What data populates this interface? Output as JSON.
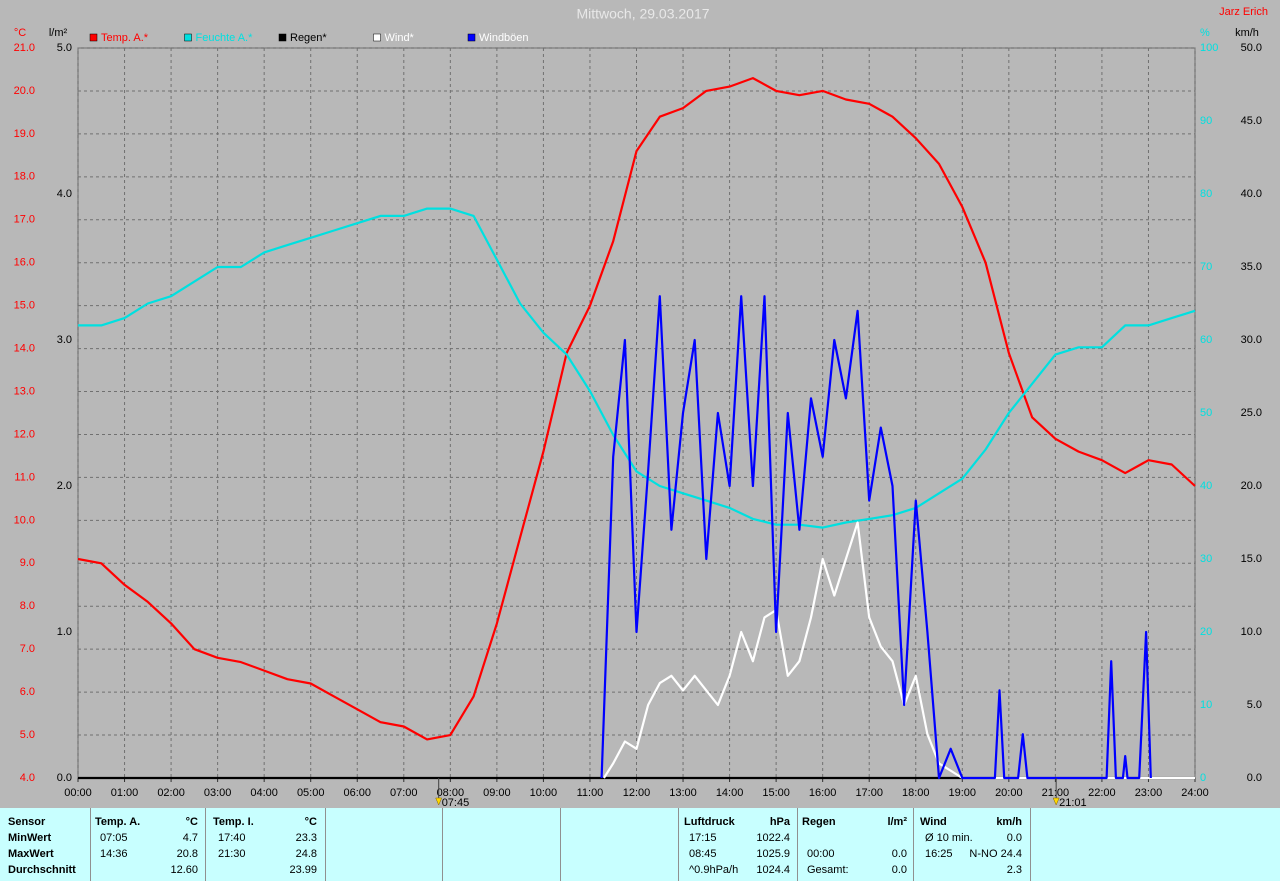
{
  "chart_data": {
    "type": "line",
    "title": "Mittwoch, 29.03.2017",
    "author": "Jarz Erich",
    "x": [
      0,
      0.5,
      1,
      1.5,
      2,
      2.5,
      3,
      3.5,
      4,
      4.5,
      5,
      5.5,
      6,
      6.5,
      7,
      7.5,
      8,
      8.5,
      9,
      9.5,
      10,
      10.5,
      11,
      11.5,
      12,
      12.5,
      13,
      13.5,
      14,
      14.5,
      15,
      15.5,
      16,
      16.5,
      17,
      17.5,
      18,
      18.5,
      19,
      19.5,
      20,
      20.5,
      21,
      21.5,
      22,
      22.5,
      23,
      23.5,
      24
    ],
    "xlim": [
      0,
      24
    ],
    "xticks": [
      {
        "value": 0,
        "label": "00:00"
      },
      {
        "value": 1,
        "label": "01:00"
      },
      {
        "value": 2,
        "label": "02:00"
      },
      {
        "value": 3,
        "label": "03:00"
      },
      {
        "value": 4,
        "label": "04:00"
      },
      {
        "value": 5,
        "label": "05:00"
      },
      {
        "value": 6,
        "label": "06:00"
      },
      {
        "value": 7,
        "label": "07:00"
      },
      {
        "value": 8,
        "label": "08:00"
      },
      {
        "value": 9,
        "label": "09:00"
      },
      {
        "value": 10,
        "label": "10:00"
      },
      {
        "value": 11,
        "label": "11:00"
      },
      {
        "value": 12,
        "label": "12:00"
      },
      {
        "value": 13,
        "label": "13:00"
      },
      {
        "value": 14,
        "label": "14:00"
      },
      {
        "value": 15,
        "label": "15:00"
      },
      {
        "value": 16,
        "label": "16:00"
      },
      {
        "value": 17,
        "label": "17:00"
      },
      {
        "value": 18,
        "label": "18:00"
      },
      {
        "value": 19,
        "label": "19:00"
      },
      {
        "value": 20,
        "label": "20:00"
      },
      {
        "value": 21,
        "label": "21:00"
      },
      {
        "value": 22,
        "label": "22:00"
      },
      {
        "value": 23,
        "label": "23:00"
      },
      {
        "value": 24,
        "label": "24:00"
      }
    ],
    "grid": true,
    "axes": [
      {
        "name": "°C",
        "color": "#ff0000",
        "lim": [
          4,
          21
        ],
        "ticks": [
          {
            "value": 4,
            "label": "4.0"
          },
          {
            "value": 5,
            "label": "5.0"
          },
          {
            "value": 6,
            "label": "6.0"
          },
          {
            "value": 7,
            "label": "7.0"
          },
          {
            "value": 8,
            "label": "8.0"
          },
          {
            "value": 9,
            "label": "9.0"
          },
          {
            "value": 10,
            "label": "10.0"
          },
          {
            "value": 11,
            "label": "11.0"
          },
          {
            "value": 12,
            "label": "12.0"
          },
          {
            "value": 13,
            "label": "13.0"
          },
          {
            "value": 14,
            "label": "14.0"
          },
          {
            "value": 15,
            "label": "15.0"
          },
          {
            "value": 16,
            "label": "16.0"
          },
          {
            "value": 17,
            "label": "17.0"
          },
          {
            "value": 18,
            "label": "18.0"
          },
          {
            "value": 19,
            "label": "19.0"
          },
          {
            "value": 20,
            "label": "20.0"
          },
          {
            "value": 21,
            "label": "21.0"
          }
        ]
      },
      {
        "name": "l/m²",
        "color": "#000000",
        "lim": [
          0,
          5
        ],
        "ticks": [
          {
            "value": 0,
            "label": "0.0"
          },
          {
            "value": 1,
            "label": "1.0"
          },
          {
            "value": 2,
            "label": "2.0"
          },
          {
            "value": 3,
            "label": "3.0"
          },
          {
            "value": 4,
            "label": "4.0"
          },
          {
            "value": 5,
            "label": "5.0"
          }
        ]
      },
      {
        "name": "%",
        "color": "#00e0e0",
        "lim": [
          0,
          100
        ],
        "ticks": [
          0,
          10,
          20,
          30,
          40,
          50,
          60,
          70,
          80,
          90,
          100
        ]
      },
      {
        "name": "km/h",
        "color": "#000000",
        "lim": [
          0,
          50
        ],
        "ticks": [
          {
            "value": 0,
            "label": "0.0"
          },
          {
            "value": 5,
            "label": "5.0"
          },
          {
            "value": 10,
            "label": "10.0"
          },
          {
            "value": 15,
            "label": "15.0"
          },
          {
            "value": 20,
            "label": "20.0"
          },
          {
            "value": 25,
            "label": "25.0"
          },
          {
            "value": 30,
            "label": "30.0"
          },
          {
            "value": 35,
            "label": "35.0"
          },
          {
            "value": 40,
            "label": "40.0"
          },
          {
            "value": 45,
            "label": "45.0"
          },
          {
            "value": 50,
            "label": "50.0"
          }
        ]
      }
    ],
    "series": [
      {
        "name": "Temp. A.*",
        "color": "#ff0000",
        "axis": 0,
        "values": [
          9.1,
          9.0,
          8.5,
          8.1,
          7.6,
          7.0,
          6.8,
          6.7,
          6.5,
          6.3,
          6.2,
          5.9,
          5.6,
          5.3,
          5.2,
          4.9,
          5.0,
          5.9,
          7.6,
          9.6,
          11.6,
          13.9,
          15.0,
          16.5,
          18.6,
          19.4,
          19.6,
          20.0,
          20.1,
          20.3,
          20.0,
          19.9,
          20.0,
          19.8,
          19.7,
          19.4,
          18.9,
          18.3,
          17.3,
          16.0,
          13.9,
          12.4,
          11.9,
          11.6,
          11.4,
          11.1,
          11.4,
          11.3,
          10.8
        ]
      },
      {
        "name": "Feuchte A.*",
        "color": "#00e0e0",
        "axis": 2,
        "values": [
          62,
          62,
          63,
          65,
          66,
          68,
          70,
          70,
          72,
          73,
          74,
          75,
          76,
          77,
          77,
          78,
          78,
          77,
          71,
          65,
          61,
          58,
          53,
          47,
          42,
          40,
          39,
          38,
          37,
          35.5,
          34.7,
          34.7,
          34.3,
          35,
          35.5,
          36,
          37,
          39,
          41,
          45,
          50,
          54,
          58,
          59,
          59,
          62,
          62,
          63,
          64
        ]
      },
      {
        "name": "Regen*",
        "color": "#000000",
        "axis": 1,
        "x": [
          0,
          24
        ],
        "values": [
          0,
          0
        ]
      },
      {
        "name": "Wind*",
        "color": "#ffffff",
        "axis": 3,
        "x": [
          11.3,
          11.5,
          11.75,
          12,
          12.25,
          12.5,
          12.75,
          13,
          13.25,
          13.5,
          13.75,
          14,
          14.25,
          14.5,
          14.75,
          15,
          15.25,
          15.5,
          15.75,
          16,
          16.25,
          16.5,
          16.75,
          17,
          17.25,
          17.5,
          17.75,
          18,
          18.25,
          18.5,
          18.75,
          19,
          24
        ],
        "values": [
          0,
          1,
          2.5,
          2,
          5,
          6.5,
          7,
          6,
          7,
          6,
          5,
          7,
          10,
          8,
          11,
          11.5,
          7,
          8,
          11,
          15,
          12.5,
          15,
          17.5,
          11,
          9,
          8,
          5,
          7,
          3,
          1,
          0.5,
          0,
          0
        ]
      },
      {
        "name": "Windböen",
        "color": "#0000ff",
        "axis": 3,
        "x": [
          11.25,
          11.5,
          11.75,
          12,
          12.25,
          12.5,
          12.75,
          13,
          13.25,
          13.5,
          13.75,
          14,
          14.25,
          14.5,
          14.75,
          15,
          15.25,
          15.5,
          15.75,
          16,
          16.25,
          16.5,
          16.75,
          17,
          17.25,
          17.5,
          17.75,
          18,
          18.25,
          18.5,
          18.75,
          19,
          19.7,
          19.8,
          19.9,
          20.2,
          20.3,
          20.4,
          22.1,
          22.2,
          22.3,
          22.45,
          22.5,
          22.55,
          22.8,
          22.95,
          23.05
        ],
        "values": [
          0,
          22,
          30,
          10,
          21,
          33,
          17,
          25,
          30,
          15,
          25,
          20,
          33,
          20,
          33,
          10,
          25,
          17,
          26,
          22,
          30,
          26,
          32,
          19,
          24,
          20,
          5,
          19,
          10,
          0,
          2,
          0,
          0,
          6,
          0,
          0,
          3,
          0,
          0,
          8,
          0,
          0,
          1.5,
          0,
          0,
          10,
          0
        ]
      }
    ],
    "annotations": [
      {
        "value": 7.75,
        "label": "07:45"
      },
      {
        "value": 21.0167,
        "label": "21:01"
      }
    ]
  },
  "table": {
    "labels": [
      "Sensor",
      "MinWert",
      "MaxWert",
      "Durchschnitt"
    ],
    "groups": [
      {
        "name": "Temp. A.",
        "unit": "°C",
        "rows": [
          [
            "07:05",
            "4.7"
          ],
          [
            "14:36",
            "20.8"
          ],
          [
            null,
            "12.60"
          ]
        ]
      },
      {
        "name": "Temp. I.",
        "unit": "°C",
        "rows": [
          [
            "17:40",
            "23.3"
          ],
          [
            "21:30",
            "24.8"
          ],
          [
            null,
            "23.99"
          ]
        ]
      },
      {
        "name": "Luftdruck",
        "unit": "hPa",
        "rows": [
          [
            "17:15",
            "1022.4"
          ],
          [
            "08:45",
            "1025.9"
          ],
          [
            "^0.9hPa/h",
            "1024.4"
          ]
        ]
      },
      {
        "name": "Regen",
        "unit": "l/m²",
        "rows": [
          [
            null,
            null
          ],
          [
            "00:00",
            "0.0"
          ],
          [
            "Gesamt:",
            "0.0"
          ]
        ]
      },
      {
        "name": "Wind",
        "unit": "km/h",
        "rows": [
          [
            "Ø 10 min.",
            "0.0"
          ],
          [
            "16:25",
            "N-NO 24.4"
          ],
          [
            null,
            "2.3"
          ]
        ]
      }
    ]
  }
}
